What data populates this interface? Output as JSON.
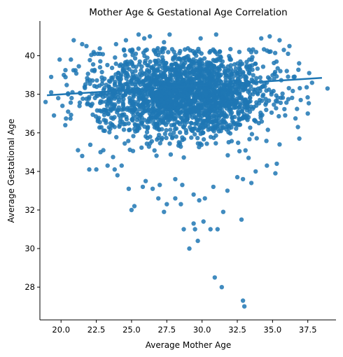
{
  "chart_data": {
    "type": "scatter",
    "title": "Mother Age & Gestational Age Correlation",
    "xlabel": "Average Mother Age",
    "ylabel": "Average Gestational Age",
    "xlim": [
      18.5,
      39.5
    ],
    "ylim": [
      26.3,
      41.8
    ],
    "xticks": [
      "20.0",
      "22.5",
      "25.0",
      "27.5",
      "30.0",
      "32.5",
      "35.0",
      "37.5"
    ],
    "yticks": [
      "28",
      "30",
      "32",
      "34",
      "36",
      "38",
      "40"
    ],
    "grid": false,
    "legend": "none",
    "point_color": "#1f77b4",
    "regression_line": {
      "x": [
        19.0,
        38.5
      ],
      "y": [
        37.95,
        38.85
      ]
    },
    "dense_cloud": {
      "x_center": 28.8,
      "x_spread": 3.3,
      "y_center": 38.0,
      "y_spread": 1.1,
      "y_upper_limit": 40.4,
      "count": 2200
    },
    "points": [
      [
        18.9,
        37.6
      ],
      [
        19.3,
        38.9
      ],
      [
        19.3,
        38.1
      ],
      [
        19.5,
        36.9
      ],
      [
        19.8,
        37.8
      ],
      [
        19.9,
        39.8
      ],
      [
        20.2,
        39.0
      ],
      [
        20.3,
        36.4
      ],
      [
        20.5,
        37.1
      ],
      [
        20.7,
        39.8
      ],
      [
        20.9,
        40.8
      ],
      [
        21.2,
        35.1
      ],
      [
        21.5,
        40.6
      ],
      [
        21.5,
        34.8
      ],
      [
        21.8,
        40.5
      ],
      [
        22.0,
        34.1
      ],
      [
        22.5,
        34.1
      ],
      [
        22.8,
        35.0
      ],
      [
        23.3,
        34.3
      ],
      [
        23.8,
        34.1
      ],
      [
        24.3,
        34.3
      ],
      [
        24.8,
        33.1
      ],
      [
        25.0,
        32.0
      ],
      [
        25.2,
        32.2
      ],
      [
        25.5,
        41.1
      ],
      [
        25.9,
        40.9
      ],
      [
        25.8,
        33.2
      ],
      [
        26.5,
        33.1
      ],
      [
        26.3,
        41.0
      ],
      [
        26.9,
        32.6
      ],
      [
        27.3,
        40.7
      ],
      [
        27.5,
        32.3
      ],
      [
        27.7,
        41.1
      ],
      [
        27.3,
        31.9
      ],
      [
        28.1,
        32.6
      ],
      [
        28.6,
        33.3
      ],
      [
        28.7,
        31.0
      ],
      [
        28.5,
        32.3
      ],
      [
        29.1,
        30.0
      ],
      [
        29.4,
        31.3
      ],
      [
        29.5,
        31.0
      ],
      [
        29.7,
        30.4
      ],
      [
        29.8,
        32.5
      ],
      [
        30.1,
        31.4
      ],
      [
        30.2,
        32.6
      ],
      [
        30.6,
        31.0
      ],
      [
        31.1,
        31.0
      ],
      [
        31.5,
        31.9
      ],
      [
        30.9,
        28.5
      ],
      [
        31.4,
        28.0
      ],
      [
        32.8,
        31.5
      ],
      [
        32.9,
        27.3
      ],
      [
        33.0,
        27.0
      ],
      [
        33.5,
        33.4
      ],
      [
        32.9,
        33.6
      ],
      [
        33.8,
        34.0
      ],
      [
        34.6,
        34.3
      ],
      [
        35.2,
        33.9
      ],
      [
        35.3,
        34.4
      ],
      [
        34.8,
        41.0
      ],
      [
        35.5,
        40.8
      ],
      [
        35.8,
        40.3
      ],
      [
        36.2,
        40.5
      ],
      [
        36.5,
        38.9
      ],
      [
        36.8,
        36.3
      ],
      [
        37.0,
        37.7
      ],
      [
        37.5,
        37.0
      ],
      [
        37.6,
        39.1
      ],
      [
        37.8,
        38.6
      ],
      [
        38.9,
        38.3
      ],
      [
        36.1,
        40.1
      ],
      [
        34.2,
        40.9
      ],
      [
        31.0,
        41.1
      ],
      [
        29.9,
        40.9
      ],
      [
        24.6,
        40.8
      ],
      [
        23.9,
        40.6
      ],
      [
        22.6,
        40.1
      ],
      [
        20.5,
        38.0
      ],
      [
        20.1,
        37.4
      ],
      [
        36.9,
        35.7
      ],
      [
        35.5,
        35.4
      ],
      [
        23.0,
        35.1
      ],
      [
        24.0,
        33.8
      ],
      [
        26.0,
        33.5
      ],
      [
        27.0,
        33.3
      ],
      [
        31.8,
        33.0
      ],
      [
        32.5,
        33.7
      ],
      [
        29.4,
        32.8
      ],
      [
        28.1,
        33.6
      ],
      [
        30.8,
        33.2
      ]
    ]
  }
}
